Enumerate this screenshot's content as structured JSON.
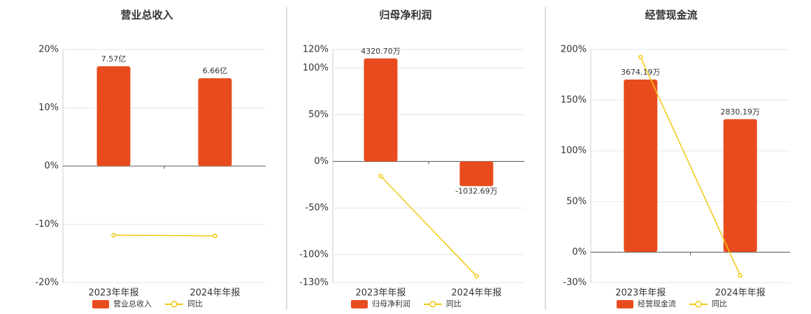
{
  "chart_data": [
    {
      "type": "bar",
      "title": "营业总收入",
      "categories": [
        "2023年年报",
        "2024年年报"
      ],
      "series": [
        {
          "name": "营业总收入",
          "color": "#e84c1e",
          "values": [
            7.57,
            6.66
          ],
          "value_labels": [
            "7.57亿",
            "6.66亿"
          ],
          "axis": "y2"
        },
        {
          "name": "同比",
          "type": "line",
          "color": "#f2c811",
          "values": [
            -11.86,
            -11.98
          ]
        }
      ],
      "ylim": [
        -20,
        20
      ],
      "yticks": [
        {
          "value": -20,
          "label": "-20%"
        },
        {
          "value": -10,
          "label": "-10%"
        },
        {
          "value": 0,
          "label": "0%"
        },
        {
          "value": 10,
          "label": "10%"
        },
        {
          "value": 20,
          "label": "20%"
        }
      ],
      "y2lim": [
        -8.84,
        8.84
      ],
      "grid": true
    },
    {
      "type": "bar",
      "title": "归母净利润",
      "categories": [
        "2023年年报",
        "2024年年报"
      ],
      "series": [
        {
          "name": "归母净利润",
          "color": "#e84c1e",
          "values": [
            4320.7,
            -1032.69
          ],
          "value_labels": [
            "4320.70万",
            "-1032.69万"
          ],
          "axis": "y2"
        },
        {
          "name": "同比",
          "type": "line",
          "color": "#f2c811",
          "values": [
            -15.7,
            -123
          ]
        }
      ],
      "ylim": [
        -130,
        120
      ],
      "yticks": [
        {
          "value": -130,
          "label": "-130%"
        },
        {
          "value": -100,
          "label": "-100%"
        },
        {
          "value": -50,
          "label": "-50%"
        },
        {
          "value": 0,
          "label": "0%"
        },
        {
          "value": 50,
          "label": "50%"
        },
        {
          "value": 100,
          "label": "100%"
        },
        {
          "value": 120,
          "label": "120%"
        }
      ],
      "y2lim": [
        -5080,
        4695
      ],
      "grid": true
    },
    {
      "type": "bar",
      "title": "经营现金流",
      "categories": [
        "2023年年报",
        "2024年年报"
      ],
      "series": [
        {
          "name": "经营现金流",
          "color": "#e84c1e",
          "values": [
            3674.19,
            2830.19
          ],
          "value_labels": [
            "3674.19万",
            "2830.19万"
          ],
          "axis": "y2"
        },
        {
          "name": "同比",
          "type": "line",
          "color": "#f2c811",
          "values": [
            192.4,
            -22.9
          ]
        }
      ],
      "ylim": [
        -30,
        200
      ],
      "yticks": [
        {
          "value": -30,
          "label": "-30%"
        },
        {
          "value": 0,
          "label": "0%"
        },
        {
          "value": 50,
          "label": "50%"
        },
        {
          "value": 100,
          "label": "100%"
        },
        {
          "value": 150,
          "label": "150%"
        },
        {
          "value": 200,
          "label": "200%"
        }
      ],
      "y2lim": [
        -654,
        4314
      ],
      "grid": true
    }
  ]
}
